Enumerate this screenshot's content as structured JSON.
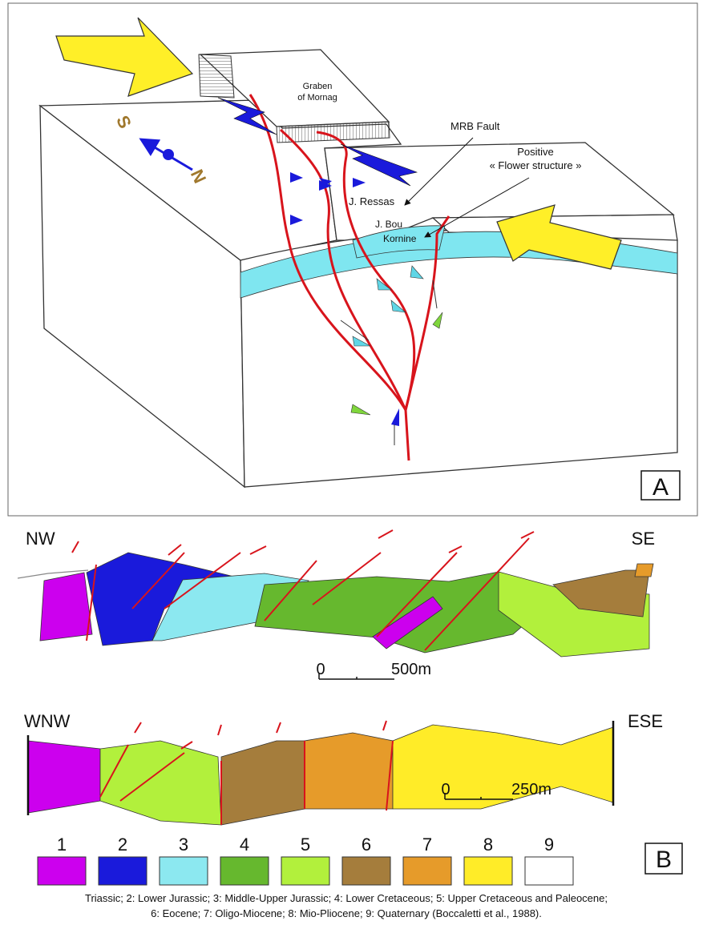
{
  "panel_a": {
    "graben_label": [
      "Graben",
      "of Mornag"
    ],
    "mrb_fault": "MRB Fault",
    "flower_label": [
      "Positive",
      "« Flower structure »"
    ],
    "j_ressas": "J. Ressas",
    "j_bou_kornine": [
      "J. Bou",
      "Kornine"
    ],
    "compass": {
      "south": "S",
      "north": "N"
    },
    "panel_label": "A"
  },
  "panel_b": {
    "section_1": {
      "left": "NW",
      "right": "SE",
      "scale": {
        "zero": "0",
        "length": "500m"
      }
    },
    "section_2": {
      "left": "WNW",
      "right": "ESE",
      "scale": {
        "zero": "0",
        "length": "250m"
      }
    },
    "legend": {
      "items": [
        "1",
        "2",
        "3",
        "4",
        "5",
        "6",
        "7",
        "8",
        "9"
      ]
    },
    "panel_label": "B",
    "caption": [
      "Triassic; 2: Lower Jurassic; 3: Middle-Upper Jurassic; 4: Lower Cretaceous; 5: Upper Cretaceous and Paleocene;",
      "6: Eocene; 7: Oligo-Miocene; 8: Mio-Pliocene; 9: Quaternary (Boccaletti et al., 1988)."
    ]
  }
}
